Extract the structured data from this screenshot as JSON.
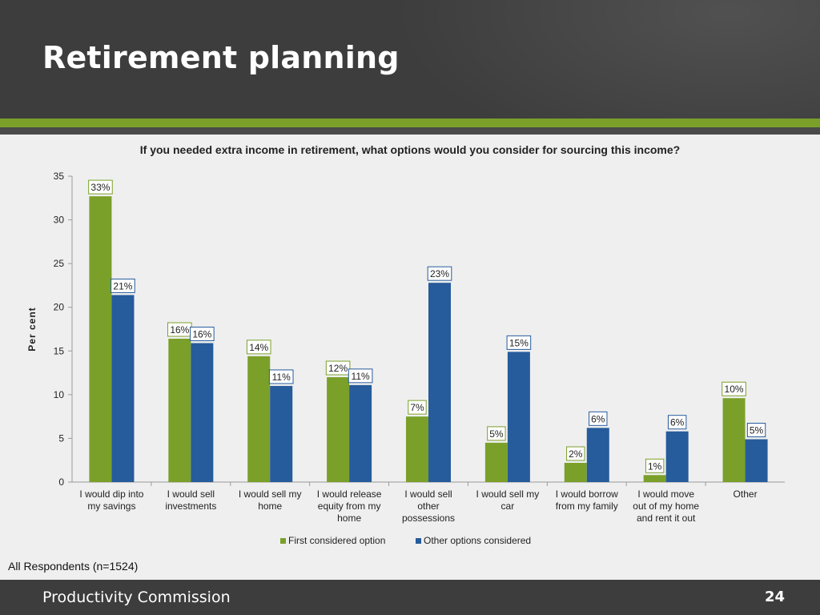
{
  "slide": {
    "title": "Retirement planning",
    "note": "All Respondents (n=1524)",
    "footer_org": "Productivity Commission",
    "page_number": "24"
  },
  "colors": {
    "first": "#7aa02a",
    "other": "#265b9c"
  },
  "chart_data": {
    "type": "bar",
    "title": "If you needed extra income in retirement, what options would you consider for sourcing this income?",
    "ylabel": "Per cent",
    "xlabel": "",
    "ylim": [
      0,
      35
    ],
    "yticks": [
      0,
      5,
      10,
      15,
      20,
      25,
      30,
      35
    ],
    "grid": false,
    "legend": "bottom",
    "categories": [
      [
        "I would dip into",
        "my savings"
      ],
      [
        "I would sell",
        "investments"
      ],
      [
        "I would sell my",
        "home"
      ],
      [
        "I would release",
        "equity from my",
        "home"
      ],
      [
        "I would sell",
        "other",
        "possessions"
      ],
      [
        "I would sell my",
        "car"
      ],
      [
        "I would borrow",
        "from my family"
      ],
      [
        "I would move",
        "out of my home",
        "and rent it out"
      ],
      [
        "Other"
      ]
    ],
    "series": [
      {
        "name": "First considered option",
        "values": [
          32.7,
          16.4,
          14.4,
          12.0,
          7.5,
          4.5,
          2.2,
          0.8,
          9.6
        ],
        "labels": [
          "33%",
          "16%",
          "14%",
          "12%",
          "7%",
          "5%",
          "2%",
          "1%",
          "10%"
        ]
      },
      {
        "name": "Other options considered",
        "values": [
          21.4,
          15.9,
          11.0,
          11.1,
          22.8,
          14.9,
          6.2,
          5.8,
          4.9
        ],
        "labels": [
          "21%",
          "16%",
          "11%",
          "11%",
          "23%",
          "15%",
          "6%",
          "6%",
          "5%"
        ]
      }
    ]
  }
}
